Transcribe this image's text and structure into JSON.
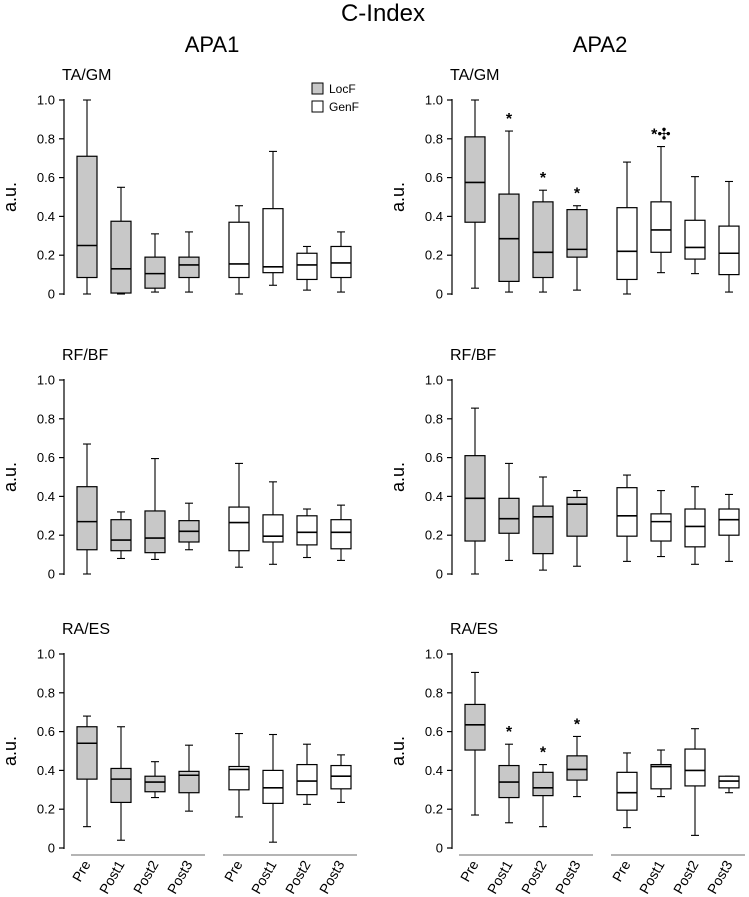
{
  "chart_data": {
    "type": "boxplot",
    "title": "C-Index",
    "column_titles": [
      "APA1",
      "APA2"
    ],
    "row_titles": [
      "TA/GM",
      "RF/BF",
      "RA/ES"
    ],
    "ylabel": "a.u.",
    "ylim": [
      0,
      1.0
    ],
    "yticks": [
      "0",
      "0.2",
      "0.4",
      "0.6",
      "0.8",
      "1.0"
    ],
    "categories": [
      "Pre",
      "Post1",
      "Post2",
      "Post3"
    ],
    "legend": [
      {
        "name": "LocF",
        "fill": "#c8c8c8"
      },
      {
        "name": "GenF",
        "fill": "#ffffff"
      }
    ],
    "panels": [
      {
        "name": "TA/GM",
        "column": "APA1",
        "series": [
          {
            "name": "LocF",
            "boxes": [
              {
                "min": 0.0,
                "q1": 0.085,
                "median": 0.25,
                "q3": 0.71,
                "max": 1.0,
                "mark": ""
              },
              {
                "min": 0.0,
                "q1": 0.005,
                "median": 0.13,
                "q3": 0.375,
                "max": 0.55,
                "mark": ""
              },
              {
                "min": 0.01,
                "q1": 0.03,
                "median": 0.105,
                "q3": 0.19,
                "max": 0.31,
                "mark": ""
              },
              {
                "min": 0.01,
                "q1": 0.085,
                "median": 0.15,
                "q3": 0.19,
                "max": 0.32,
                "mark": ""
              }
            ]
          },
          {
            "name": "GenF",
            "boxes": [
              {
                "min": 0.0,
                "q1": 0.085,
                "median": 0.155,
                "q3": 0.37,
                "max": 0.455,
                "mark": ""
              },
              {
                "min": 0.045,
                "q1": 0.11,
                "median": 0.14,
                "q3": 0.44,
                "max": 0.735,
                "mark": ""
              },
              {
                "min": 0.02,
                "q1": 0.075,
                "median": 0.15,
                "q3": 0.21,
                "max": 0.245,
                "mark": ""
              },
              {
                "min": 0.01,
                "q1": 0.085,
                "median": 0.16,
                "q3": 0.245,
                "max": 0.32,
                "mark": ""
              }
            ]
          }
        ]
      },
      {
        "name": "TA/GM",
        "column": "APA2",
        "series": [
          {
            "name": "LocF",
            "boxes": [
              {
                "min": 0.03,
                "q1": 0.37,
                "median": 0.575,
                "q3": 0.81,
                "max": 1.0,
                "mark": ""
              },
              {
                "min": 0.01,
                "q1": 0.065,
                "median": 0.285,
                "q3": 0.515,
                "max": 0.84,
                "mark": "*"
              },
              {
                "min": 0.01,
                "q1": 0.085,
                "median": 0.215,
                "q3": 0.475,
                "max": 0.535,
                "mark": "*"
              },
              {
                "min": 0.02,
                "q1": 0.19,
                "median": 0.23,
                "q3": 0.435,
                "max": 0.455,
                "mark": "*"
              }
            ]
          },
          {
            "name": "GenF",
            "boxes": [
              {
                "min": 0.0,
                "q1": 0.075,
                "median": 0.22,
                "q3": 0.445,
                "max": 0.68,
                "mark": ""
              },
              {
                "min": 0.11,
                "q1": 0.215,
                "median": 0.33,
                "q3": 0.475,
                "max": 0.76,
                "mark": "*✣"
              },
              {
                "min": 0.105,
                "q1": 0.18,
                "median": 0.24,
                "q3": 0.38,
                "max": 0.605,
                "mark": ""
              },
              {
                "min": 0.01,
                "q1": 0.1,
                "median": 0.21,
                "q3": 0.35,
                "max": 0.58,
                "mark": ""
              }
            ]
          }
        ]
      },
      {
        "name": "RF/BF",
        "column": "APA1",
        "series": [
          {
            "name": "LocF",
            "boxes": [
              {
                "min": 0.0,
                "q1": 0.125,
                "median": 0.27,
                "q3": 0.45,
                "max": 0.67,
                "mark": ""
              },
              {
                "min": 0.08,
                "q1": 0.12,
                "median": 0.175,
                "q3": 0.28,
                "max": 0.32,
                "mark": ""
              },
              {
                "min": 0.075,
                "q1": 0.11,
                "median": 0.185,
                "q3": 0.325,
                "max": 0.595,
                "mark": ""
              },
              {
                "min": 0.125,
                "q1": 0.165,
                "median": 0.22,
                "q3": 0.275,
                "max": 0.365,
                "mark": ""
              }
            ]
          },
          {
            "name": "GenF",
            "boxes": [
              {
                "min": 0.035,
                "q1": 0.12,
                "median": 0.265,
                "q3": 0.345,
                "max": 0.57,
                "mark": ""
              },
              {
                "min": 0.05,
                "q1": 0.165,
                "median": 0.195,
                "q3": 0.305,
                "max": 0.475,
                "mark": ""
              },
              {
                "min": 0.085,
                "q1": 0.15,
                "median": 0.215,
                "q3": 0.3,
                "max": 0.335,
                "mark": ""
              },
              {
                "min": 0.07,
                "q1": 0.13,
                "median": 0.215,
                "q3": 0.28,
                "max": 0.355,
                "mark": ""
              }
            ]
          }
        ]
      },
      {
        "name": "RF/BF",
        "column": "APA2",
        "series": [
          {
            "name": "LocF",
            "boxes": [
              {
                "min": 0.0,
                "q1": 0.17,
                "median": 0.39,
                "q3": 0.61,
                "max": 0.855,
                "mark": ""
              },
              {
                "min": 0.07,
                "q1": 0.21,
                "median": 0.285,
                "q3": 0.39,
                "max": 0.57,
                "mark": ""
              },
              {
                "min": 0.02,
                "q1": 0.105,
                "median": 0.295,
                "q3": 0.35,
                "max": 0.5,
                "mark": ""
              },
              {
                "min": 0.04,
                "q1": 0.195,
                "median": 0.36,
                "q3": 0.395,
                "max": 0.43,
                "mark": ""
              }
            ]
          },
          {
            "name": "GenF",
            "boxes": [
              {
                "min": 0.065,
                "q1": 0.195,
                "median": 0.3,
                "q3": 0.445,
                "max": 0.51,
                "mark": ""
              },
              {
                "min": 0.09,
                "q1": 0.17,
                "median": 0.27,
                "q3": 0.31,
                "max": 0.43,
                "mark": ""
              },
              {
                "min": 0.05,
                "q1": 0.14,
                "median": 0.245,
                "q3": 0.335,
                "max": 0.45,
                "mark": ""
              },
              {
                "min": 0.065,
                "q1": 0.2,
                "median": 0.28,
                "q3": 0.335,
                "max": 0.41,
                "mark": ""
              }
            ]
          }
        ]
      },
      {
        "name": "RA/ES",
        "column": "APA1",
        "series": [
          {
            "name": "LocF",
            "boxes": [
              {
                "min": 0.11,
                "q1": 0.355,
                "median": 0.54,
                "q3": 0.625,
                "max": 0.68,
                "mark": ""
              },
              {
                "min": 0.04,
                "q1": 0.235,
                "median": 0.355,
                "q3": 0.41,
                "max": 0.625,
                "mark": ""
              },
              {
                "min": 0.26,
                "q1": 0.29,
                "median": 0.34,
                "q3": 0.37,
                "max": 0.445,
                "mark": ""
              },
              {
                "min": 0.19,
                "q1": 0.285,
                "median": 0.375,
                "q3": 0.395,
                "max": 0.53,
                "mark": ""
              }
            ]
          },
          {
            "name": "GenF",
            "boxes": [
              {
                "min": 0.16,
                "q1": 0.3,
                "median": 0.405,
                "q3": 0.42,
                "max": 0.59,
                "mark": ""
              },
              {
                "min": 0.03,
                "q1": 0.23,
                "median": 0.31,
                "q3": 0.4,
                "max": 0.585,
                "mark": ""
              },
              {
                "min": 0.225,
                "q1": 0.275,
                "median": 0.345,
                "q3": 0.43,
                "max": 0.535,
                "mark": ""
              },
              {
                "min": 0.235,
                "q1": 0.305,
                "median": 0.37,
                "q3": 0.425,
                "max": 0.48,
                "mark": ""
              }
            ]
          }
        ]
      },
      {
        "name": "RA/ES",
        "column": "APA2",
        "series": [
          {
            "name": "LocF",
            "boxes": [
              {
                "min": 0.17,
                "q1": 0.505,
                "median": 0.635,
                "q3": 0.74,
                "max": 0.905,
                "mark": ""
              },
              {
                "min": 0.13,
                "q1": 0.26,
                "median": 0.34,
                "q3": 0.425,
                "max": 0.535,
                "mark": "*"
              },
              {
                "min": 0.11,
                "q1": 0.27,
                "median": 0.31,
                "q3": 0.39,
                "max": 0.43,
                "mark": "*"
              },
              {
                "min": 0.265,
                "q1": 0.35,
                "median": 0.405,
                "q3": 0.475,
                "max": 0.575,
                "mark": "*"
              }
            ]
          },
          {
            "name": "GenF",
            "boxes": [
              {
                "min": 0.105,
                "q1": 0.195,
                "median": 0.285,
                "q3": 0.39,
                "max": 0.49,
                "mark": ""
              },
              {
                "min": 0.265,
                "q1": 0.305,
                "median": 0.42,
                "q3": 0.43,
                "max": 0.505,
                "mark": ""
              },
              {
                "min": 0.065,
                "q1": 0.32,
                "median": 0.4,
                "q3": 0.51,
                "max": 0.615,
                "mark": ""
              },
              {
                "min": 0.285,
                "q1": 0.31,
                "median": 0.345,
                "q3": 0.37,
                "max": 0.37,
                "mark": ""
              }
            ]
          }
        ]
      }
    ]
  }
}
